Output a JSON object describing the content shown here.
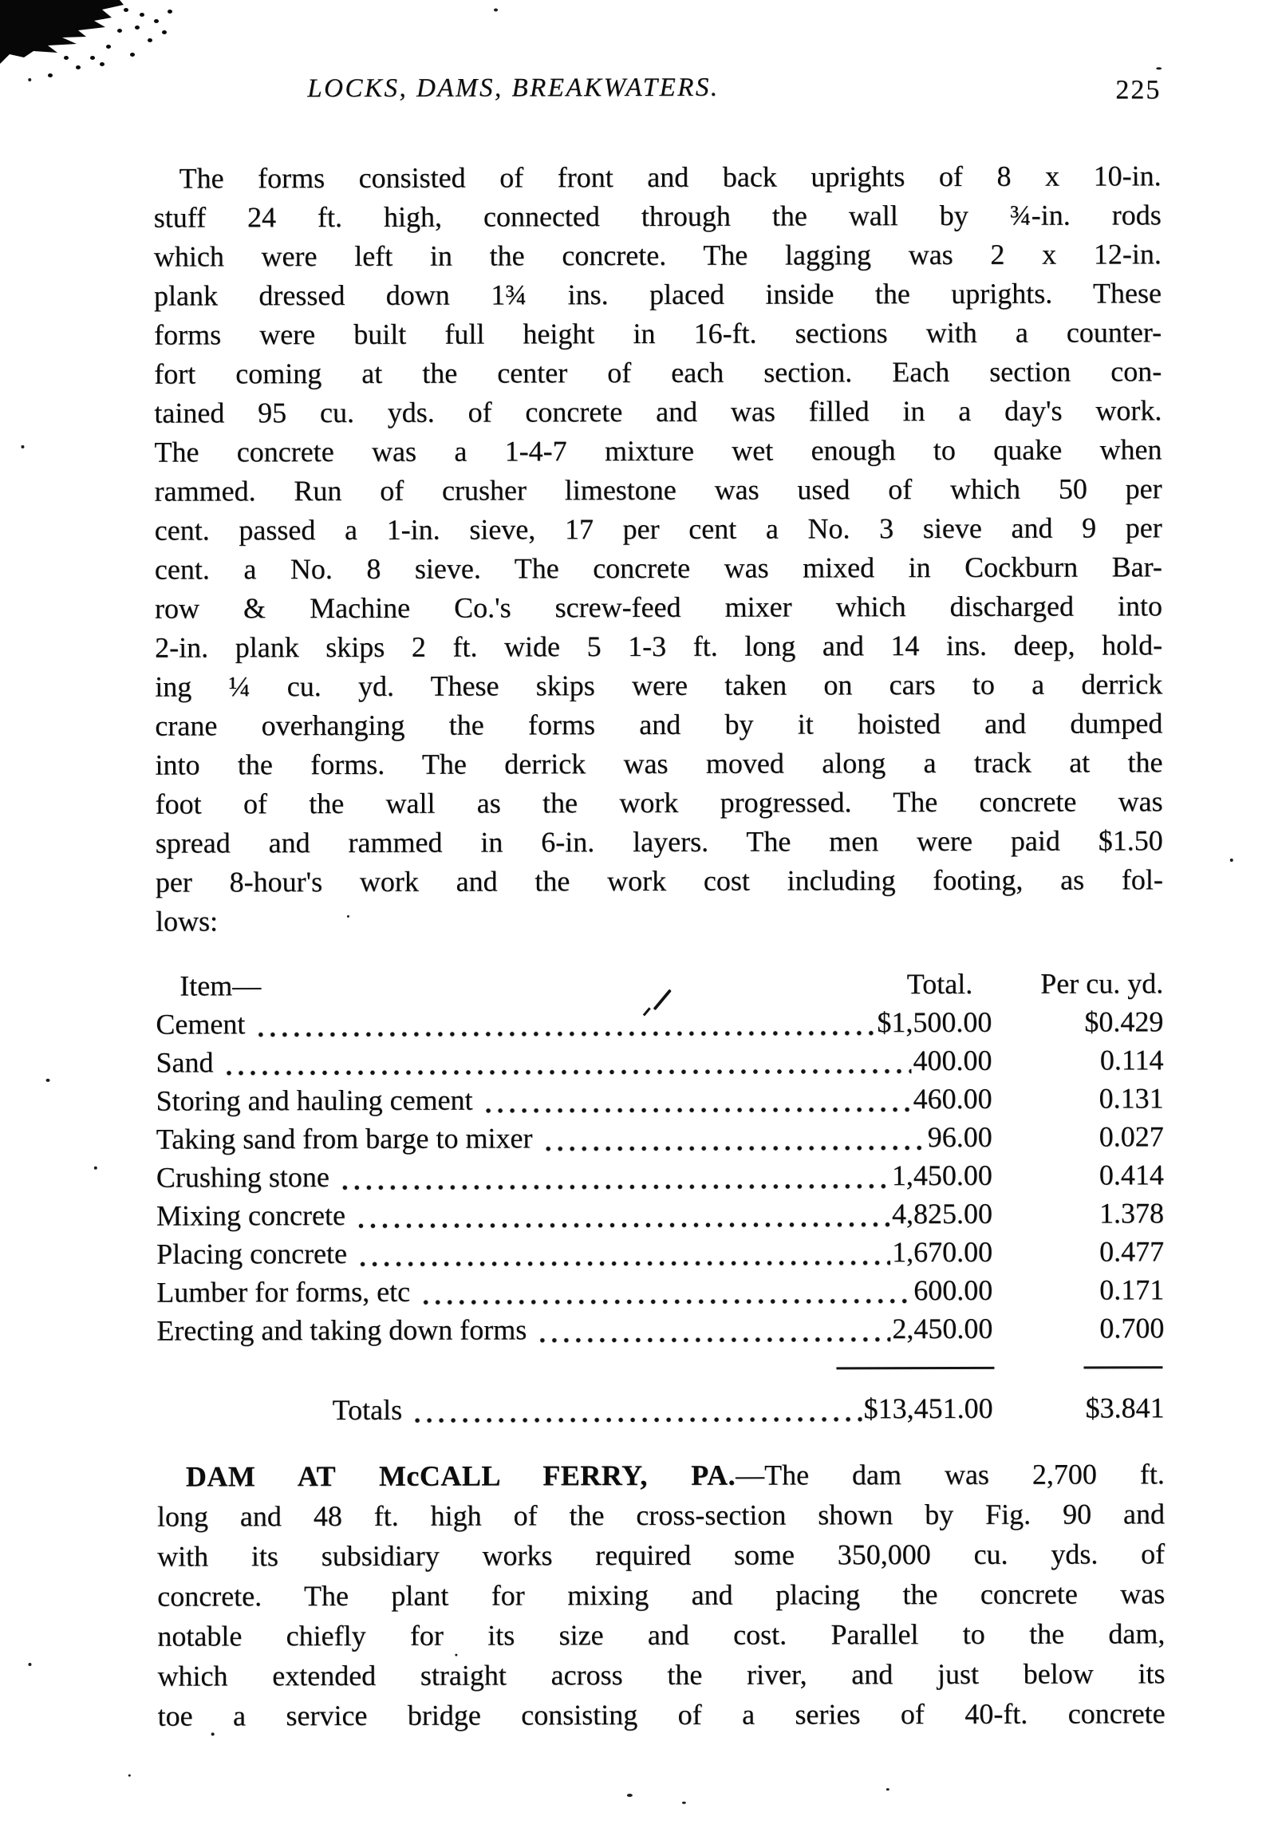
{
  "header": {
    "title": "LOCKS, DAMS, BREAKWATERS.",
    "page_number": "225"
  },
  "paragraph1": {
    "lines": [
      "The forms consisted of front and back uprights of 8 x 10-in.",
      "stuff 24 ft. high, connected through the wall by ¾-in. rods",
      "which were left in the concrete. The lagging was 2 x 12-in.",
      "plank dressed down 1¾ ins. placed inside the uprights. These",
      "forms were built full height in 16-ft. sections with a counter-",
      "fort coming at the center of each section. Each section con-",
      "tained 95 cu. yds. of concrete and was filled in a day's work.",
      "The concrete was a 1-4-7 mixture wet enough to quake when",
      "rammed. Run of crusher limestone was used of which 50 per",
      "cent. passed a 1-in. sieve, 17 per cent a No. 3 sieve and 9 per",
      "cent. a No. 8 sieve. The concrete was mixed in Cockburn Bar-",
      "row & Machine Co.'s screw-feed mixer which discharged into",
      "2-in. plank skips 2 ft. wide 5 1-3 ft. long and 14 ins. deep, hold-",
      "ing ¼ cu. yd. These skips were taken on cars to a derrick",
      "crane overhanging the forms and by it hoisted and dumped",
      "into the forms. The derrick was moved along a track at the",
      "foot of the wall as the work progressed. The concrete was",
      "spread and rammed in 6-in. layers. The men were paid $1.50",
      "per 8-hour's work and the work cost including footing, as fol-",
      "lows:"
    ]
  },
  "cost_table": {
    "columns": {
      "item": "Item—",
      "total": "Total.",
      "per": "Per cu. yd."
    },
    "rows": [
      {
        "item": "Cement",
        "total": "$1,500.00",
        "per": "$0.429"
      },
      {
        "item": "Sand",
        "total": "400.00",
        "per": "0.114"
      },
      {
        "item": "Storing and hauling cement",
        "total": "460.00",
        "per": "0.131"
      },
      {
        "item": "Taking sand from barge to mixer",
        "total": "96.00",
        "per": "0.027"
      },
      {
        "item": "Crushing stone",
        "total": "1,450.00",
        "per": "0.414"
      },
      {
        "item": "Mixing concrete",
        "total": "4,825.00",
        "per": "1.378"
      },
      {
        "item": "Placing concrete",
        "total": "1,670.00",
        "per": "0.477"
      },
      {
        "item": "Lumber for forms, etc",
        "total": "600.00",
        "per": "0.171"
      },
      {
        "item": "Erecting and taking down forms",
        "total": "2,450.00",
        "per": "0.700"
      }
    ],
    "totals": {
      "label": "Totals",
      "total": "$13,451.00",
      "per": "$3.841"
    }
  },
  "paragraph2": {
    "lead": "DAM AT McCALL FERRY, PA.",
    "lead_rest": "—The dam was 2,700 ft.",
    "lines": [
      "long and 48 ft. high of the cross-section shown by Fig. 90 and",
      "with its subsidiary works required some 350,000 cu. yds. of",
      "concrete. The plant for mixing and placing the concrete was",
      "notable chiefly for its size and cost. Parallel to the dam,",
      "which extended straight across the river, and just below its",
      "toe a service bridge consisting of a series of 40-ft. concrete"
    ]
  }
}
